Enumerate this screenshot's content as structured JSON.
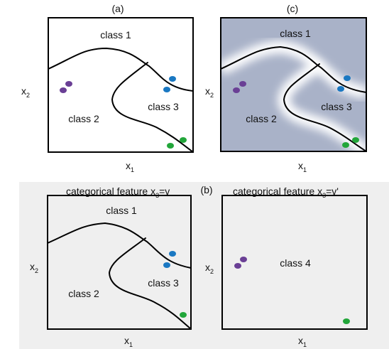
{
  "panels": {
    "a": {
      "tag": "(a)",
      "xlabel": "x",
      "xsub": "1",
      "ylabel": "x",
      "ysub": "2",
      "classes": [
        "class 1",
        "class 2",
        "class 3"
      ]
    },
    "c": {
      "tag": "(c)",
      "xlabel": "x",
      "xsub": "1",
      "ylabel": "x",
      "ysub": "2",
      "classes": [
        "class 1",
        "class 2",
        "class 3"
      ]
    },
    "b": {
      "tag": "(b)",
      "left": {
        "header": "categorical feature x",
        "header_sub": "3",
        "header_eq": "=v",
        "xlabel": "x",
        "xsub": "1",
        "ylabel": "x",
        "ysub": "2",
        "classes": [
          "class 1",
          "class 2",
          "class 3"
        ]
      },
      "right": {
        "header": "categorical feature x",
        "header_sub": "3",
        "header_eq": "=v'",
        "xlabel": "x",
        "xsub": "1",
        "ylabel": "x",
        "ysub": "2",
        "classes": [
          "class 4"
        ]
      }
    }
  },
  "colors": {
    "purple": "#6a3f95",
    "blue": "#1a78c2",
    "green": "#22a63a",
    "shade": "#a9b2c8",
    "bottom_bg": "#efefef"
  }
}
